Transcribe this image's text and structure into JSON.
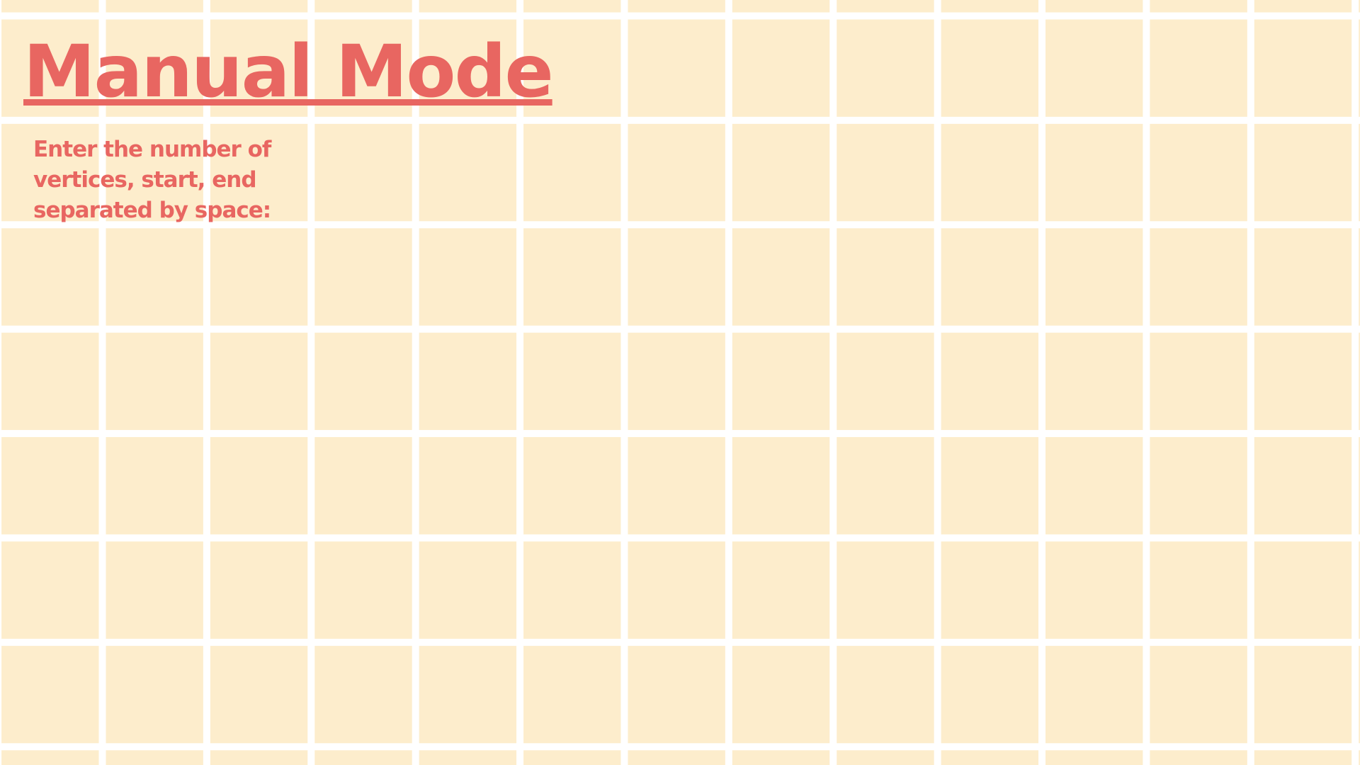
{
  "page": {
    "title": "Manual Mode",
    "instruction": "Enter the number of vertices, start, end separated by space:"
  },
  "colors": {
    "background_cell": "#FDEDCC",
    "grid_line": "#FFFFFF",
    "accent_text": "#E86661"
  }
}
